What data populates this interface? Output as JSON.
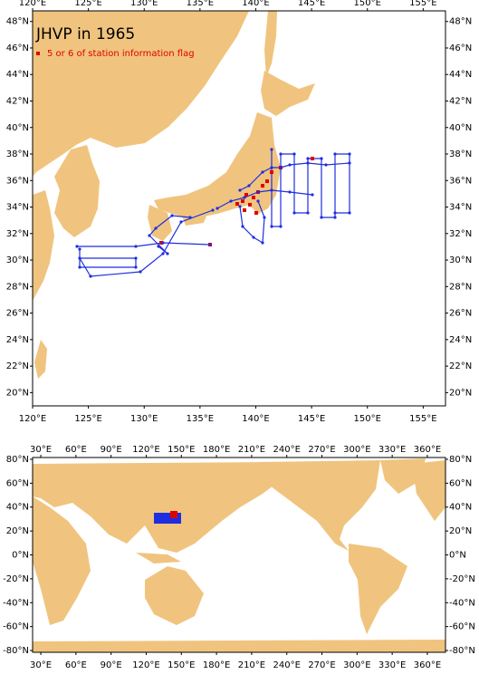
{
  "top_map": {
    "title": "JHVP in 1965",
    "legend": "5 or 6 of station information flag",
    "xlim": [
      120,
      157
    ],
    "ylim": [
      19,
      48.8
    ],
    "xticks": [
      {
        "value": 120,
        "label": "120°E"
      },
      {
        "value": 125,
        "label": "125°E"
      },
      {
        "value": 130,
        "label": "130°E"
      },
      {
        "value": 135,
        "label": "135°E"
      },
      {
        "value": 140,
        "label": "140°E"
      },
      {
        "value": 145,
        "label": "145°E"
      },
      {
        "value": 150,
        "label": "150°E"
      },
      {
        "value": 155,
        "label": "155°E"
      }
    ],
    "yticks": [
      {
        "value": 20,
        "label": "20°N"
      },
      {
        "value": 22,
        "label": "22°N"
      },
      {
        "value": 24,
        "label": "24°N"
      },
      {
        "value": 26,
        "label": "26°N"
      },
      {
        "value": 28,
        "label": "28°N"
      },
      {
        "value": 30,
        "label": "30°N"
      },
      {
        "value": 32,
        "label": "32°N"
      },
      {
        "value": 34,
        "label": "34°N"
      },
      {
        "value": 36,
        "label": "36°N"
      },
      {
        "value": 38,
        "label": "38°N"
      },
      {
        "value": 40,
        "label": "40°N"
      },
      {
        "value": 42,
        "label": "42°N"
      },
      {
        "value": 44,
        "label": "44°N"
      },
      {
        "value": 46,
        "label": "46°N"
      },
      {
        "value": 48,
        "label": "48°N"
      }
    ]
  },
  "bottom_map": {
    "xlim": [
      23,
      375.5
    ],
    "ylim": [
      -81.5,
      81.5
    ],
    "xticks": [
      {
        "value": 30,
        "label": "30°E"
      },
      {
        "value": 60,
        "label": "60°E"
      },
      {
        "value": 90,
        "label": "90°E"
      },
      {
        "value": 120,
        "label": "120°E"
      },
      {
        "value": 150,
        "label": "150°E"
      },
      {
        "value": 180,
        "label": "180°E"
      },
      {
        "value": 210,
        "label": "210°E"
      },
      {
        "value": 240,
        "label": "240°E"
      },
      {
        "value": 270,
        "label": "270°E"
      },
      {
        "value": 300,
        "label": "300°E"
      },
      {
        "value": 330,
        "label": "330°E"
      },
      {
        "value": 360,
        "label": "360°E"
      }
    ],
    "yticks": [
      {
        "value": 80,
        "label": "80°N"
      },
      {
        "value": 60,
        "label": "60°N"
      },
      {
        "value": 40,
        "label": "40°N"
      },
      {
        "value": 20,
        "label": "20°N"
      },
      {
        "value": 0,
        "label": "0°N"
      },
      {
        "value": -20,
        "label": "-20°N"
      },
      {
        "value": -40,
        "label": "-40°N"
      },
      {
        "value": -60,
        "label": "-60°N"
      },
      {
        "value": -80,
        "label": "-80°N"
      }
    ]
  }
}
